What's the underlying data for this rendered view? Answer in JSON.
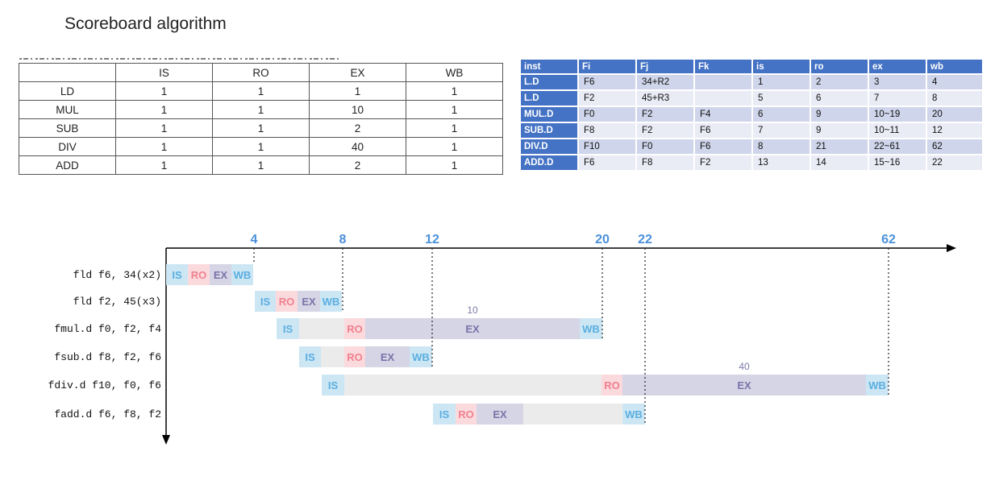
{
  "title": "Scoreboard algorithm",
  "latency_table": {
    "headers": [
      "",
      "IS",
      "RO",
      "EX",
      "WB"
    ],
    "rows": [
      [
        "LD",
        "1",
        "1",
        "1",
        "1"
      ],
      [
        "MUL",
        "1",
        "1",
        "10",
        "1"
      ],
      [
        "SUB",
        "1",
        "1",
        "2",
        "1"
      ],
      [
        "DIV",
        "1",
        "1",
        "40",
        "1"
      ],
      [
        "ADD",
        "1",
        "1",
        "2",
        "1"
      ]
    ]
  },
  "scoreboard_table": {
    "headers": [
      "inst",
      "Fi",
      "Fj",
      "Fk",
      "is",
      "ro",
      "ex",
      "wb"
    ],
    "rows": [
      [
        "L.D",
        "F6",
        "34+R2",
        "",
        "1",
        "2",
        "3",
        "4"
      ],
      [
        "L.D",
        "F2",
        "45+R3",
        "",
        "5",
        "6",
        "7",
        "8"
      ],
      [
        "MUL.D",
        "F0",
        "F2",
        "F4",
        "6",
        "9",
        "10~19",
        "20"
      ],
      [
        "SUB.D",
        "F8",
        "F2",
        "F6",
        "7",
        "9",
        "10~11",
        "12"
      ],
      [
        "DIV.D",
        "F10",
        "F0",
        "F6",
        "8",
        "21",
        "22~61",
        "62"
      ],
      [
        "ADD.D",
        "F6",
        "F8",
        "F2",
        "13",
        "14",
        "15~16",
        "22"
      ]
    ]
  },
  "timing": {
    "ticks": [
      "4",
      "8",
      "12",
      "20",
      "22",
      "62"
    ],
    "stage_labels": {
      "is": "IS",
      "ro": "RO",
      "ex": "EX",
      "wb": "WB"
    },
    "colors": {
      "is": "#cce6f4",
      "ro": "#fadadd",
      "ex": "#d5d5e6",
      "wb": "#cce6f4",
      "stall": "#ebebeb",
      "is_text": "#5aaee0",
      "ro_text": "#f0808f",
      "ex_text": "#7a73a8",
      "wb_text": "#5aaee0",
      "tick_text": "#4a90d9",
      "axis": "#000000"
    },
    "instructions": [
      {
        "label": "fld f6, 34(x2)",
        "latency_note": ""
      },
      {
        "label": "fld f2, 45(x3)",
        "latency_note": ""
      },
      {
        "label": "fmul.d f0, f2, f4",
        "latency_note": "10"
      },
      {
        "label": "fsub.d f8, f2, f6",
        "latency_note": ""
      },
      {
        "label": "fdiv.d f10, f0, f6",
        "latency_note": "40"
      },
      {
        "label": "fadd.d f6, f8, f2",
        "latency_note": ""
      }
    ]
  }
}
